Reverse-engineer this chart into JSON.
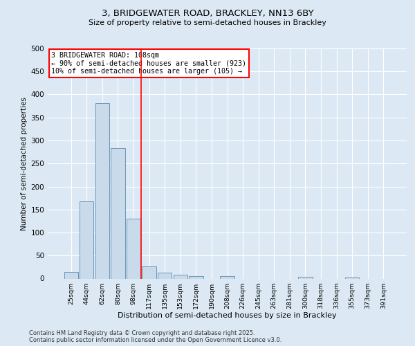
{
  "title_line1": "3, BRIDGEWATER ROAD, BRACKLEY, NN13 6BY",
  "title_line2": "Size of property relative to semi-detached houses in Brackley",
  "xlabel": "Distribution of semi-detached houses by size in Brackley",
  "ylabel": "Number of semi-detached properties",
  "bin_labels": [
    "25sqm",
    "44sqm",
    "62sqm",
    "80sqm",
    "98sqm",
    "117sqm",
    "135sqm",
    "153sqm",
    "172sqm",
    "190sqm",
    "208sqm",
    "226sqm",
    "245sqm",
    "263sqm",
    "281sqm",
    "300sqm",
    "318sqm",
    "336sqm",
    "355sqm",
    "373sqm",
    "391sqm"
  ],
  "bar_values": [
    15,
    168,
    381,
    283,
    130,
    27,
    13,
    8,
    5,
    0,
    6,
    0,
    0,
    0,
    0,
    4,
    0,
    0,
    3,
    0,
    0
  ],
  "bar_color": "#c9daea",
  "bar_edge_color": "#5a8ab0",
  "red_line_x": 4.5,
  "annotation_title": "3 BRIDGEWATER ROAD: 108sqm",
  "annotation_line1": "← 90% of semi-detached houses are smaller (923)",
  "annotation_line2": "10% of semi-detached houses are larger (105) →",
  "ylim": [
    0,
    500
  ],
  "yticks": [
    0,
    50,
    100,
    150,
    200,
    250,
    300,
    350,
    400,
    450,
    500
  ],
  "background_color": "#dce9f5",
  "plot_bg_color": "#dce9f5",
  "footer_line1": "Contains HM Land Registry data © Crown copyright and database right 2025.",
  "footer_line2": "Contains public sector information licensed under the Open Government Licence v3.0."
}
